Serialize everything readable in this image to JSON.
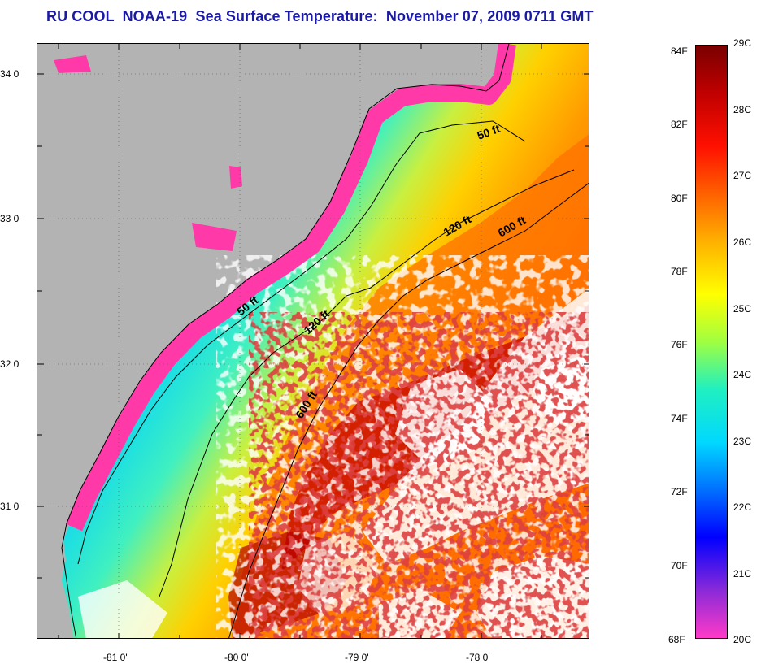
{
  "title": "RU COOL  NOAA-19  Sea Surface Temperature:  November 07, 2009 0711 GMT",
  "map": {
    "lat_labels": [
      "34 0'",
      "33 0'",
      "32 0'",
      "31 0'"
    ],
    "lon_labels": [
      "-81 0'",
      "-80 0'",
      "-79 0'",
      "-78 0'"
    ],
    "isobaths": [
      {
        "label": "50 ft"
      },
      {
        "label": "50 ft"
      },
      {
        "label": "120 ft"
      },
      {
        "label": "120 ft"
      },
      {
        "label": "600 ft"
      },
      {
        "label": "600 ft"
      }
    ],
    "colors": {
      "land": "#b3b3b3",
      "cloud": "#ffffff",
      "coastal_cold": "#ff3aa8",
      "deep_blue": "#1a1acc"
    }
  },
  "colorbar": {
    "fahrenheit_labels": [
      "84F",
      "82F",
      "80F",
      "78F",
      "76F",
      "74F",
      "72F",
      "70F",
      "68F"
    ],
    "celsius_labels": [
      "29C",
      "28C",
      "27C",
      "26C",
      "25C",
      "24C",
      "23C",
      "22C",
      "21C",
      "20C"
    ],
    "range_c": [
      20,
      29
    ],
    "gradient": [
      "#ff3ac8",
      "#8a2ad8",
      "#0000ff",
      "#0070ff",
      "#00d8ff",
      "#20f0c0",
      "#a0ff40",
      "#ffff00",
      "#ffb000",
      "#ff6000",
      "#ff1000",
      "#c00000",
      "#7a0000"
    ]
  }
}
